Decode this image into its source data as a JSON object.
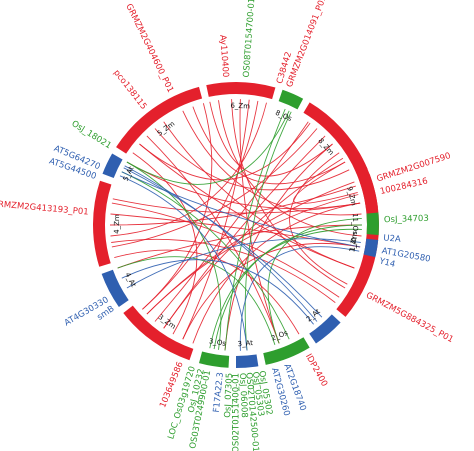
{
  "colors": {
    "Zm": "#e4202c",
    "Os": "#2e9e2e",
    "At": "#2f5fb0",
    "background": "#ffffff"
  },
  "segments": [
    {
      "id": "1_Zm",
      "species": "Zm",
      "start": 66,
      "end": 130
    },
    {
      "id": "2_At",
      "species": "At",
      "start": 133,
      "end": 146
    },
    {
      "id": "2_Os",
      "species": "Os",
      "start": 149,
      "end": 168
    },
    {
      "id": "3_At",
      "species": "At",
      "start": 171,
      "end": 180
    },
    {
      "id": "3_Os",
      "species": "Os",
      "start": 183,
      "end": 195
    },
    {
      "id": "3_Zm",
      "species": "Zm",
      "start": 199,
      "end": 232
    },
    {
      "id": "4_At",
      "species": "At",
      "start": 235,
      "end": 250
    },
    {
      "id": "4_Zm",
      "species": "Zm",
      "start": 253,
      "end": 288
    },
    {
      "id": "5_At",
      "species": "At",
      "start": 291,
      "end": 300
    },
    {
      "id": "5_Zm",
      "species": "Zm",
      "start": 303,
      "end": 345
    },
    {
      "id": "6_Zm",
      "species": "Zm",
      "start": 348,
      "end": 376
    },
    {
      "id": "8_Os",
      "species": "Os",
      "start": 379,
      "end": 388
    },
    {
      "id": "8_Zm",
      "species": "Zm",
      "start": 391,
      "end": 427
    },
    {
      "id": "9_Zm",
      "species": "Zm",
      "start": 429,
      "end": 443
    },
    {
      "id": "11_Os",
      "species": "Os",
      "start": 445,
      "end": 454
    },
    {
      "id": "1_At",
      "species": "At",
      "start": 456,
      "end": 463
    }
  ],
  "genes": [
    {
      "text": "pco138115",
      "angle": 322,
      "species": "Zm"
    },
    {
      "text": "GRMZM2G404600_P01",
      "angle": 334,
      "species": "Zm"
    },
    {
      "text": "Ay110400",
      "angle": 356,
      "species": "Zm"
    },
    {
      "text": "OS08T0154700-01",
      "angle": 4,
      "species": "Os"
    },
    {
      "text": "C38442",
      "angle": 17,
      "species": "Zm"
    },
    {
      "text": "GRMZM2G014091_P01",
      "angle": 21,
      "species": "Zm"
    },
    {
      "text": "GRMZM2G007590",
      "angle": 72,
      "species": "Zm"
    },
    {
      "text": "100284316",
      "angle": 77,
      "species": "Zm"
    },
    {
      "text": "OsJ_34703",
      "angle": 88,
      "species": "Os"
    },
    {
      "text": "U2A",
      "angle": 95,
      "species": "At"
    },
    {
      "text": "AT1G20580",
      "angle": 100,
      "species": "At"
    },
    {
      "text": "Y14",
      "angle": 104,
      "species": "At"
    },
    {
      "text": "GRMZM5G884325_P01",
      "angle": 118,
      "species": "Zm"
    },
    {
      "text": "IDP2400",
      "angle": 151,
      "species": "Zm"
    },
    {
      "text": "AT2G18740",
      "angle": 160,
      "species": "At"
    },
    {
      "text": "AT2G30260",
      "angle": 165,
      "species": "At"
    },
    {
      "text": "OsJ_05302",
      "angle": 170,
      "species": "Os"
    },
    {
      "text": "OsJ_05303",
      "angle": 172.5,
      "species": "Os"
    },
    {
      "text": "OS02T0142500-01",
      "angle": 175,
      "species": "Os"
    },
    {
      "text": "OsJ_06008",
      "angle": 177.5,
      "species": "Os"
    },
    {
      "text": "OS02T0151400-01",
      "angle": 180,
      "species": "Os"
    },
    {
      "text": "OsJ_07305",
      "angle": 182.5,
      "species": "Os"
    },
    {
      "text": "F17A22.3",
      "angle": 186,
      "species": "At"
    },
    {
      "text": "OS03T0249900-01",
      "angle": 191,
      "species": "Os"
    },
    {
      "text": "OsJ_10232",
      "angle": 193.5,
      "species": "Os"
    },
    {
      "text": "LOC_Os03g19720",
      "angle": 197,
      "species": "Os"
    },
    {
      "text": "103649586",
      "angle": 202,
      "species": "Zm"
    },
    {
      "text": "smB",
      "angle": 236,
      "species": "At"
    },
    {
      "text": "AT4G30330",
      "angle": 240,
      "species": "At"
    },
    {
      "text": "GRMZM2G413193_P01",
      "angle": 275,
      "species": "Zm"
    },
    {
      "text": "AT5G44500",
      "angle": 289,
      "species": "At"
    },
    {
      "text": "AT5G64270",
      "angle": 293,
      "species": "At"
    },
    {
      "text": "OsJ_18021",
      "angle": 302,
      "species": "Os"
    }
  ],
  "links": [
    {
      "a": 348,
      "b": 50,
      "color": "Zm"
    },
    {
      "a": 352,
      "b": 95,
      "color": "Zm"
    },
    {
      "a": 358,
      "b": 120,
      "color": "Zm"
    },
    {
      "a": 362,
      "b": 160,
      "color": "Zm"
    },
    {
      "a": 366,
      "b": 205,
      "color": "Zm"
    },
    {
      "a": 370,
      "b": 228,
      "color": "Zm"
    },
    {
      "a": 374,
      "b": 265,
      "color": "Zm"
    },
    {
      "a": 396,
      "b": 310,
      "color": "Zm"
    },
    {
      "a": 400,
      "b": 260,
      "color": "Zm"
    },
    {
      "a": 405,
      "b": 215,
      "color": "Zm"
    },
    {
      "a": 410,
      "b": 185,
      "color": "Zm"
    },
    {
      "a": 415,
      "b": 118,
      "color": "Zm"
    },
    {
      "a": 420,
      "b": 75,
      "color": "Zm"
    },
    {
      "a": 424,
      "b": 320,
      "color": "Zm"
    },
    {
      "a": 432,
      "b": 270,
      "color": "Zm"
    },
    {
      "a": 436,
      "b": 225,
      "color": "Zm"
    },
    {
      "a": 440,
      "b": 200,
      "color": "Zm"
    },
    {
      "a": 80,
      "b": 300,
      "color": "Zm"
    },
    {
      "a": 90,
      "b": 250,
      "color": "Zm"
    },
    {
      "a": 100,
      "b": 205,
      "color": "Zm"
    },
    {
      "a": 110,
      "b": 310,
      "color": "Zm"
    },
    {
      "a": 125,
      "b": 280,
      "color": "Zm"
    },
    {
      "a": 70,
      "b": 225,
      "color": "Zm"
    },
    {
      "a": 305,
      "b": 210,
      "color": "Zm"
    },
    {
      "a": 315,
      "b": 160,
      "color": "Zm"
    },
    {
      "a": 325,
      "b": 110,
      "color": "Zm"
    },
    {
      "a": 335,
      "b": 85,
      "color": "Zm"
    },
    {
      "a": 340,
      "b": 60,
      "color": "Zm"
    },
    {
      "a": 255,
      "b": 150,
      "color": "Zm"
    },
    {
      "a": 262,
      "b": 128,
      "color": "Zm"
    },
    {
      "a": 275,
      "b": 100,
      "color": "Zm"
    },
    {
      "a": 282,
      "b": 440,
      "color": "Zm"
    },
    {
      "a": 215,
      "b": 58,
      "color": "Zm"
    },
    {
      "a": 228,
      "b": 345,
      "color": "Zm"
    },
    {
      "a": 220,
      "b": 395,
      "color": "Zm"
    },
    {
      "a": 383,
      "b": 185,
      "color": "Os"
    },
    {
      "a": 386,
      "b": 175,
      "color": "Os"
    },
    {
      "a": 450,
      "b": 190,
      "color": "Os"
    },
    {
      "a": 447,
      "b": 160,
      "color": "Os"
    },
    {
      "a": 155,
      "b": 295,
      "color": "Os"
    },
    {
      "a": 162,
      "b": 250,
      "color": "Os"
    },
    {
      "a": 188,
      "b": 300,
      "color": "Os"
    },
    {
      "a": 192,
      "b": 452,
      "color": "Os"
    },
    {
      "a": 385,
      "b": 300,
      "color": "Os"
    },
    {
      "a": 295,
      "b": 460,
      "color": "At"
    },
    {
      "a": 298,
      "b": 140,
      "color": "At"
    },
    {
      "a": 293,
      "b": 175,
      "color": "At"
    },
    {
      "a": 240,
      "b": 458,
      "color": "At"
    },
    {
      "a": 245,
      "b": 142,
      "color": "At"
    },
    {
      "a": 178,
      "b": 462,
      "color": "At"
    },
    {
      "a": 137,
      "b": 297,
      "color": "At"
    }
  ]
}
